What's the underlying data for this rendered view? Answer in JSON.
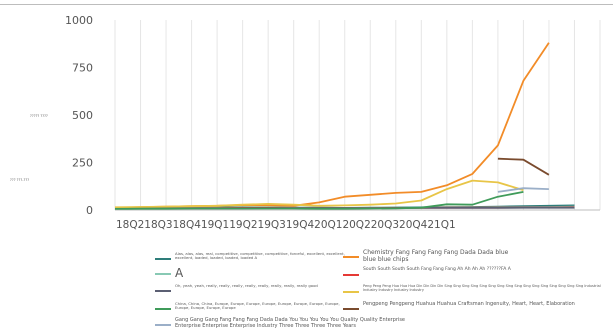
{
  "chart_data": {
    "type": "line",
    "title": "",
    "xlabel": "",
    "ylabel": "",
    "ylabel_fragments": [
      "????? ????",
      "??? ???-???"
    ],
    "x_tick_label_text": "18Q218Q318Q419Q119Q219Q319Q420Q120Q220Q320Q421Q1",
    "y_ticks": [
      0,
      250,
      500,
      750,
      1000
    ],
    "ylim": [
      0,
      1000
    ],
    "xlim": [
      0,
      19
    ],
    "grid": "vertical",
    "legend_position": "bottom",
    "series": [
      {
        "name": "Alas, alas, alas, real, competitive, competitive, competitive, forceful, excellent, excellent, excellent, loaded, loaded, loaded, loaded A",
        "color": "#2e7d7a",
        "x": [
          0,
          1,
          2,
          3,
          4,
          5,
          6,
          7,
          8,
          9,
          10,
          11,
          12,
          13,
          14,
          15,
          16,
          17,
          18
        ],
        "values": [
          10,
          11,
          12,
          12,
          13,
          14,
          13,
          12,
          12,
          11,
          12,
          13,
          14,
          15,
          16,
          18,
          20,
          22,
          24
        ]
      },
      {
        "name": "Chemistry Fang Fang Fang Fang Dada Dada blue blue blue chips",
        "color": "#f28c28",
        "x": [
          0,
          1,
          2,
          3,
          4,
          5,
          6,
          7,
          8,
          9,
          10,
          11,
          12,
          13,
          14,
          15,
          16,
          17,
          18
        ],
        "values": [
          12,
          15,
          18,
          20,
          22,
          26,
          25,
          22,
          40,
          70,
          80,
          90,
          95,
          130,
          190,
          340,
          680,
          880,
          null
        ]
      },
      {
        "name": "A",
        "color": "#88c9b4",
        "x": [
          0,
          1,
          2,
          3,
          4,
          5,
          6,
          7,
          8,
          9,
          10,
          11,
          12,
          13,
          14,
          15,
          16,
          17,
          18
        ],
        "values": [
          10,
          10,
          11,
          11,
          11,
          12,
          12,
          11,
          10,
          10,
          11,
          11,
          12,
          13,
          13,
          14,
          15,
          16,
          18
        ]
      },
      {
        "name": "South South South South Fang Fang Fang Ah Ah Ah Ah ??????FA A",
        "color": "#e53935",
        "x": [
          0,
          1,
          2,
          3,
          4,
          5,
          6,
          7,
          8,
          9,
          10,
          11,
          12,
          13,
          14,
          15,
          16,
          17,
          18
        ],
        "values": [
          9,
          9,
          10,
          10,
          10,
          11,
          11,
          10,
          10,
          10,
          10,
          11,
          11,
          12,
          12,
          12,
          13,
          13,
          14
        ]
      },
      {
        "name": "Oh, yeah, yeah, really, really, really, really, really, really, really, really good",
        "color": "#5b5f73",
        "x": [
          0,
          1,
          2,
          3,
          4,
          5,
          6,
          7,
          8,
          9,
          10,
          11,
          12,
          13,
          14,
          15,
          16,
          17,
          18
        ],
        "values": [
          8,
          8,
          9,
          9,
          9,
          9,
          10,
          10,
          10,
          10,
          10,
          10,
          11,
          11,
          11,
          11,
          12,
          12,
          12
        ]
      },
      {
        "name": "Peng Peng Peng Hua Hua Hua Din Din Din Din Sing Sing Sing Sing Sing Sing Sing Sing Sing Sing Sing Sing Sing Sing Sing Sing Industrial Industry Industry Industry Industry",
        "color": "#e8c547",
        "x": [
          0,
          1,
          2,
          3,
          4,
          5,
          6,
          7,
          8,
          9,
          10,
          11,
          12,
          13,
          14,
          15,
          16,
          17,
          18
        ],
        "values": [
          14,
          16,
          18,
          20,
          22,
          28,
          32,
          28,
          22,
          24,
          28,
          34,
          50,
          110,
          155,
          145,
          105,
          null,
          null
        ]
      },
      {
        "name": "China, China, China, Europe, Europe, Europe, Europe, Europe, Europe, Europe, Europe, Europe, Europe, Europe, Europe",
        "color": "#3f9b5a",
        "x": [
          0,
          1,
          2,
          3,
          4,
          5,
          6,
          7,
          8,
          9,
          10,
          11,
          12,
          13,
          14,
          15,
          16,
          17,
          18
        ],
        "values": [
          6,
          7,
          7,
          8,
          8,
          8,
          8,
          8,
          7,
          7,
          8,
          9,
          12,
          30,
          28,
          70,
          95,
          null,
          null
        ]
      },
      {
        "name": "Pengpeng Pengpeng Huahua Huahua Craftsman Ingenuity, Heart, Heart, Elaboration",
        "color": "#7a4b2e",
        "x": [
          15,
          16,
          17
        ],
        "values": [
          270,
          265,
          185
        ]
      },
      {
        "name": "Gang Gang Gang Fang Fang Fang Dada Dada You You You You You Quality Quality Enterprise Enterprise Enterprise Enterprise Industry Three Three Three Three Years",
        "color": "#9bafc8",
        "x": [
          15,
          16,
          17
        ],
        "values": [
          95,
          115,
          110
        ]
      }
    ]
  },
  "legend": {
    "entries": [
      "Alas, alas, alas, real, competitive, competitive, competitive, forceful, excellent, excellent, excellent, loaded, loaded, loaded, loaded A",
      "A",
      "Oh, yeah, yeah, really, really, really, really, really, really, really, really good",
      "China, China, China, Europe, Europe, Europe, Europe, Europe, Europe, Europe, Europe, Europe, Europe, Europe, Europe",
      "Gang Gang Gang Fang Fang Fang Dada Dada You You You You You Quality Quality Enterprise Enterprise Enterprise Enterprise Industry Three Three Three Three Years",
      "Chemistry Fang Fang Fang Fang Dada Dada blue blue blue chips",
      "South South South South Fang Fang Fang Ah Ah Ah Ah ??????FA A",
      "Peng Peng Peng Hua Hua Hua Din Din Din Din Sing Sing Sing Sing Sing Sing Sing Sing Sing Sing Sing Sing Sing Sing Sing Sing Industrial Industry Industry Industry Industry",
      "Pengpeng Pengpeng Huahua Huahua Craftsman Ingenuity, Heart, Heart, Elaboration"
    ]
  }
}
